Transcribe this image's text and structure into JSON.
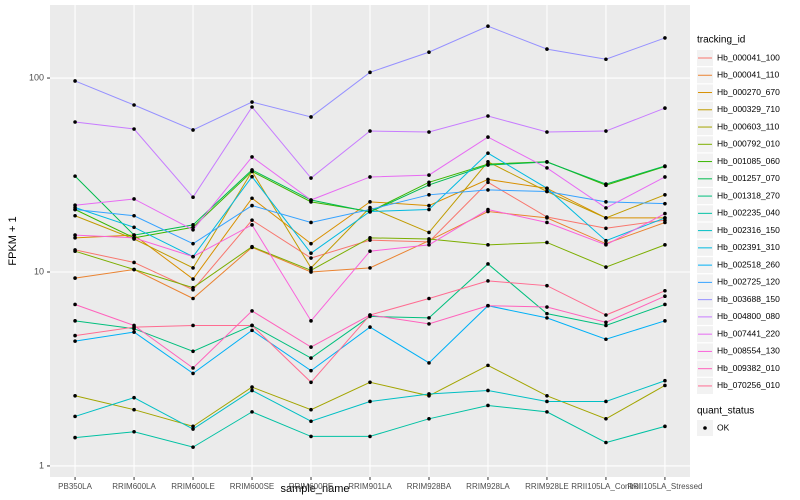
{
  "chart_data": {
    "type": "line",
    "x_label": "sample_name",
    "y_label": "FPKM + 1",
    "log_y": true,
    "grid": true,
    "legend_position": "right",
    "point_color": "#000000",
    "legend_title": "tracking_id",
    "point_legend": {
      "title": "quant_status",
      "levels": [
        "OK"
      ]
    },
    "categories": [
      "PB350LA",
      "RRIM600LA",
      "RRIM600LE",
      "RRIM600SE",
      "RRIM600PE",
      "RRIM901LA",
      "RRIM928BA",
      "RRIM928LA",
      "RRIM928LE",
      "RRII105LA_Control",
      "RRII105LA_Stressed"
    ],
    "ylim": [
      0.877,
      238
    ],
    "yticks": [
      1,
      10,
      100
    ],
    "series": [
      {
        "name": "Hb_000041_100",
        "color": "#F8766D",
        "values": [
          13,
          11.2,
          8.1,
          18.5,
          11.8,
          14.6,
          14.3,
          29,
          19.2,
          16.8,
          18.5
        ]
      },
      {
        "name": "Hb_000041_110",
        "color": "#EA8331",
        "values": [
          9.3,
          10.3,
          7.3,
          13.4,
          10,
          10.5,
          14.5,
          20.5,
          19,
          14,
          18
        ]
      },
      {
        "name": "Hb_000270_670",
        "color": "#D89000",
        "values": [
          15,
          15.5,
          9.2,
          24,
          14,
          23,
          22,
          30,
          27,
          19,
          19
        ]
      },
      {
        "name": "Hb_000329_710",
        "color": "#C09B00",
        "values": [
          19.5,
          14.8,
          10.5,
          33,
          10.5,
          21.5,
          16,
          37,
          26,
          19,
          25
        ]
      },
      {
        "name": "Hb_000603_110",
        "color": "#A3A500",
        "values": [
          2.3,
          1.95,
          1.6,
          2.55,
          1.95,
          2.7,
          2.3,
          3.3,
          2.3,
          1.75,
          2.6
        ]
      },
      {
        "name": "Hb_000792_010",
        "color": "#7CAE00",
        "values": [
          12.8,
          10.3,
          8.3,
          13.5,
          10.2,
          15,
          14.8,
          13.8,
          14.2,
          10.6,
          13.8
        ]
      },
      {
        "name": "Hb_001085_060",
        "color": "#39B600",
        "values": [
          21,
          15,
          17,
          33,
          23,
          20.5,
          29,
          36,
          37,
          28,
          35
        ]
      },
      {
        "name": "Hb_001257_070",
        "color": "#00BB4E",
        "values": [
          31.2,
          15.5,
          17.5,
          33.6,
          23.5,
          20.4,
          28.1,
          35.6,
          36.9,
          28.4,
          35.2
        ]
      },
      {
        "name": "Hb_001318_270",
        "color": "#00BF7D",
        "values": [
          5.6,
          5.1,
          3.9,
          5.3,
          3.6,
          5.9,
          5.8,
          11,
          6.1,
          5.3,
          6.8
        ]
      },
      {
        "name": "Hb_002235_040",
        "color": "#00C1A3",
        "values": [
          1.4,
          1.5,
          1.25,
          1.9,
          1.42,
          1.42,
          1.75,
          2.05,
          1.9,
          1.32,
          1.6
        ]
      },
      {
        "name": "Hb_002316_150",
        "color": "#00BFC4",
        "values": [
          1.8,
          2.25,
          1.55,
          2.45,
          1.7,
          2.15,
          2.35,
          2.45,
          2.15,
          2.15,
          2.75
        ]
      },
      {
        "name": "Hb_002391_310",
        "color": "#00BAE0",
        "values": [
          21.5,
          17,
          12,
          31,
          12.5,
          20.5,
          21,
          41,
          27,
          14.5,
          19
        ]
      },
      {
        "name": "Hb_002518_260",
        "color": "#00B0F6",
        "values": [
          4.4,
          4.9,
          3.0,
          5.0,
          3.1,
          5.2,
          3.4,
          6.7,
          5.8,
          4.5,
          5.6
        ]
      },
      {
        "name": "Hb_002725_120",
        "color": "#35A2FF",
        "values": [
          21,
          19.5,
          14,
          22,
          18,
          21,
          25,
          26.5,
          26,
          23,
          22.5
        ]
      },
      {
        "name": "Hb_003688_150",
        "color": "#9590FF",
        "values": [
          96.6,
          72.6,
          54,
          75.2,
          63,
          107,
          136,
          185,
          141,
          125,
          161
        ]
      },
      {
        "name": "Hb_004800_080",
        "color": "#C77CFF",
        "values": [
          59.3,
          54.6,
          24.3,
          70.9,
          30.5,
          53.3,
          52.7,
          63.7,
          52.7,
          53.3,
          70
        ]
      },
      {
        "name": "Hb_007441_220",
        "color": "#E76BF3",
        "values": [
          22.1,
          23.8,
          16.5,
          39.2,
          23.5,
          30.9,
          31.6,
          49.6,
          34.4,
          21.4,
          30.9
        ]
      },
      {
        "name": "Hb_008554_130",
        "color": "#FA62DB",
        "values": [
          15.5,
          15,
          12,
          17.5,
          5.6,
          12.8,
          13.8,
          21,
          18,
          13.8,
          20
        ]
      },
      {
        "name": "Hb_009382_010",
        "color": "#FF62BC",
        "values": [
          6.8,
          5.3,
          3.2,
          6.3,
          4.1,
          6.0,
          5.4,
          6.7,
          6.6,
          5.5,
          7.5
        ]
      },
      {
        "name": "Hb_070256_010",
        "color": "#FF6C91",
        "values": [
          4.7,
          5.2,
          5.3,
          5.3,
          2.7,
          6,
          7.3,
          9,
          8.5,
          6,
          8
        ]
      }
    ]
  }
}
